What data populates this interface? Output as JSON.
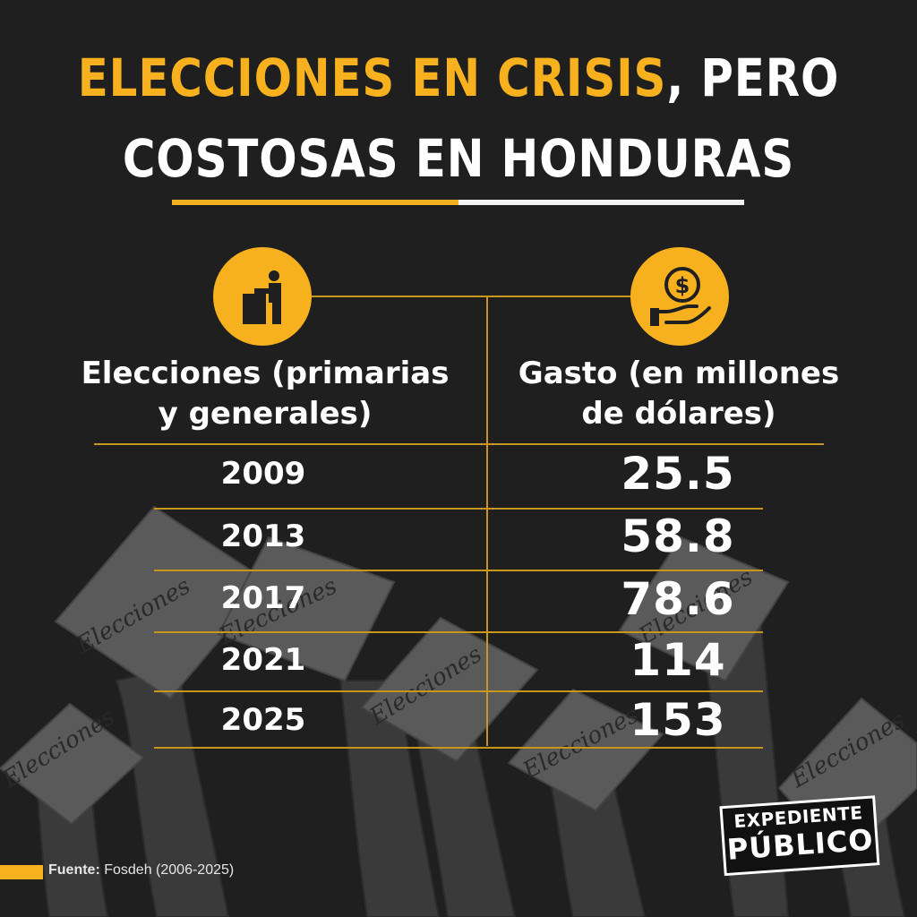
{
  "title": {
    "line1_highlight": "ELECCIONES EN CRISIS",
    "line1_rest": ", PERO",
    "line2": "COSTOSAS EN HONDURAS"
  },
  "icons": {
    "left": "ballot-box-voter-icon",
    "right": "hand-holding-dollar-coin-icon"
  },
  "colors": {
    "accent": "#f7b11f",
    "background": "#1f1f1f",
    "text": "#ffffff"
  },
  "background_art": {
    "sign_text": "Elecciones"
  },
  "chart_data": {
    "type": "table",
    "columns": [
      "Elecciones (primarias y generales)",
      "Gasto (en millones de dólares)"
    ],
    "header_lines": {
      "left": [
        "Elecciones (primarias",
        "y generales)"
      ],
      "right": [
        "Gasto (en millones",
        "de dólares)"
      ]
    },
    "rows": [
      {
        "year": "2009",
        "value": "25.5"
      },
      {
        "year": "2013",
        "value": "58.8"
      },
      {
        "year": "2017",
        "value": "78.6"
      },
      {
        "year": "2021",
        "value": "114"
      },
      {
        "year": "2025",
        "value": "153"
      }
    ],
    "x": [
      2009,
      2013,
      2017,
      2021,
      2025
    ],
    "values": [
      25.5,
      58.8,
      78.6,
      114,
      153
    ]
  },
  "source": {
    "label": "Fuente:",
    "text": "Fosdeh (2006-2025)"
  },
  "logo": {
    "line1": "EXPEDIENTE",
    "line2": "PÚBLICO"
  }
}
